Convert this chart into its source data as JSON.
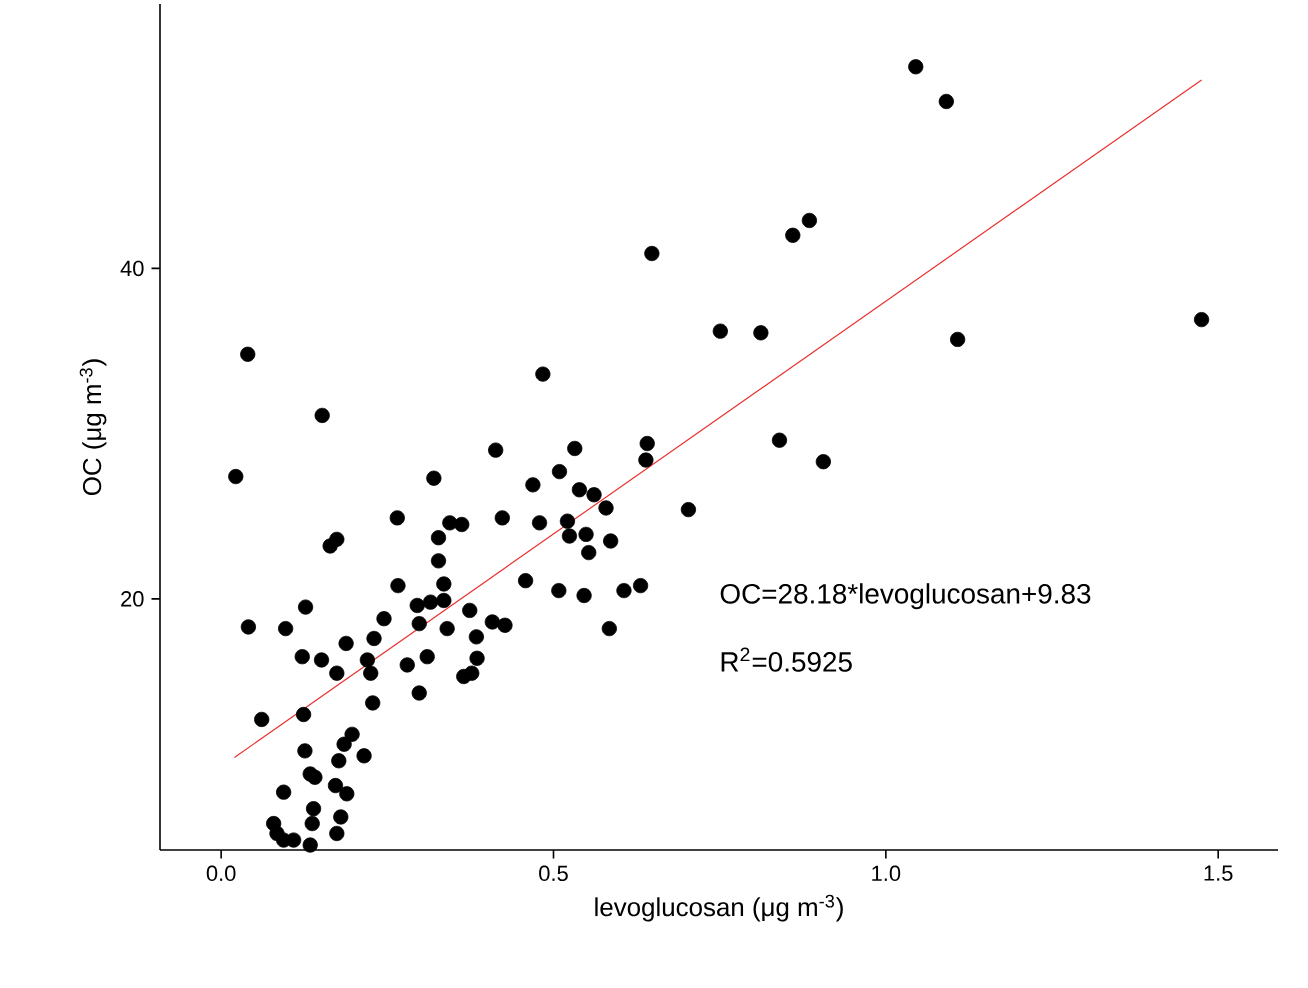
{
  "chart_data": {
    "type": "scatter",
    "xlabel": "levoglucosan (μg m$^{-3}$)",
    "ylabel": "OC (μg m$^{-3}$)",
    "xlim": [
      -0.092,
      1.59
    ],
    "ylim": [
      4.8,
      56
    ],
    "xticks": [
      {
        "value": 0,
        "label": "0.0"
      },
      0.5,
      {
        "value": 1,
        "label": "1.0"
      },
      1.5
    ],
    "yticks": [
      20,
      40
    ],
    "annotations": [
      "OC=28.18*levoglucosan+9.83",
      "R$^{2}$=0.5925"
    ],
    "series": [
      {
        "color": "#000000",
        "x": [
          1.045,
          1.091,
          0.885,
          0.86,
          0.648,
          0.751,
          0.812,
          1.108,
          1.475,
          0.04,
          0.484,
          0.152,
          0.84,
          0.906,
          0.413,
          0.532,
          0.641,
          0.639,
          0.509,
          0.469,
          0.539,
          0.561,
          0.579,
          0.703,
          0.423,
          0.479,
          0.521,
          0.524,
          0.549,
          0.586,
          0.553,
          0.458,
          0.508,
          0.546,
          0.606,
          0.631,
          0.584,
          0.374,
          0.408,
          0.427,
          0.384,
          0.022,
          0.164,
          0.174,
          0.265,
          0.32,
          0.344,
          0.362,
          0.327,
          0.327,
          0.266,
          0.335,
          0.295,
          0.315,
          0.335,
          0.298,
          0.34,
          0.245,
          0.385,
          0.31,
          0.28,
          0.365,
          0.377,
          0.298,
          0.041,
          0.097,
          0.127,
          0.188,
          0.23,
          0.122,
          0.151,
          0.174,
          0.22,
          0.225,
          0.228,
          0.061,
          0.124,
          0.197,
          0.185,
          0.215,
          0.177,
          0.126,
          0.134,
          0.141,
          0.172,
          0.189,
          0.094,
          0.139,
          0.18,
          0.137,
          0.079,
          0.084,
          0.174,
          0.094,
          0.109,
          0.134
        ],
        "values": [
          52.2,
          50.1,
          42.9,
          42.0,
          40.9,
          36.2,
          36.1,
          35.7,
          36.9,
          34.8,
          33.6,
          31.1,
          29.6,
          28.3,
          29.0,
          29.1,
          29.4,
          28.4,
          27.7,
          26.9,
          26.6,
          26.3,
          25.5,
          25.4,
          24.9,
          24.6,
          24.7,
          23.8,
          23.9,
          23.5,
          22.8,
          21.1,
          20.5,
          20.2,
          20.5,
          20.8,
          18.2,
          19.3,
          18.6,
          18.4,
          17.7,
          27.4,
          23.2,
          23.6,
          24.9,
          27.3,
          24.6,
          24.5,
          23.7,
          22.3,
          20.8,
          20.9,
          19.6,
          19.8,
          19.9,
          18.5,
          18.2,
          18.8,
          16.4,
          16.5,
          16.0,
          15.3,
          15.5,
          14.3,
          18.3,
          18.2,
          19.5,
          17.3,
          17.6,
          16.5,
          16.3,
          15.5,
          16.3,
          15.5,
          13.7,
          12.7,
          13.0,
          11.8,
          11.2,
          10.5,
          10.2,
          10.8,
          9.4,
          9.2,
          8.7,
          8.2,
          8.3,
          7.3,
          6.8,
          6.4,
          6.4,
          5.8,
          5.8,
          5.4,
          5.4,
          5.1
        ]
      },
      {
        "type": "line",
        "color": "#e8312f",
        "x": [
          0.02,
          1.475
        ],
        "values": [
          10.4,
          51.4
        ]
      }
    ]
  }
}
